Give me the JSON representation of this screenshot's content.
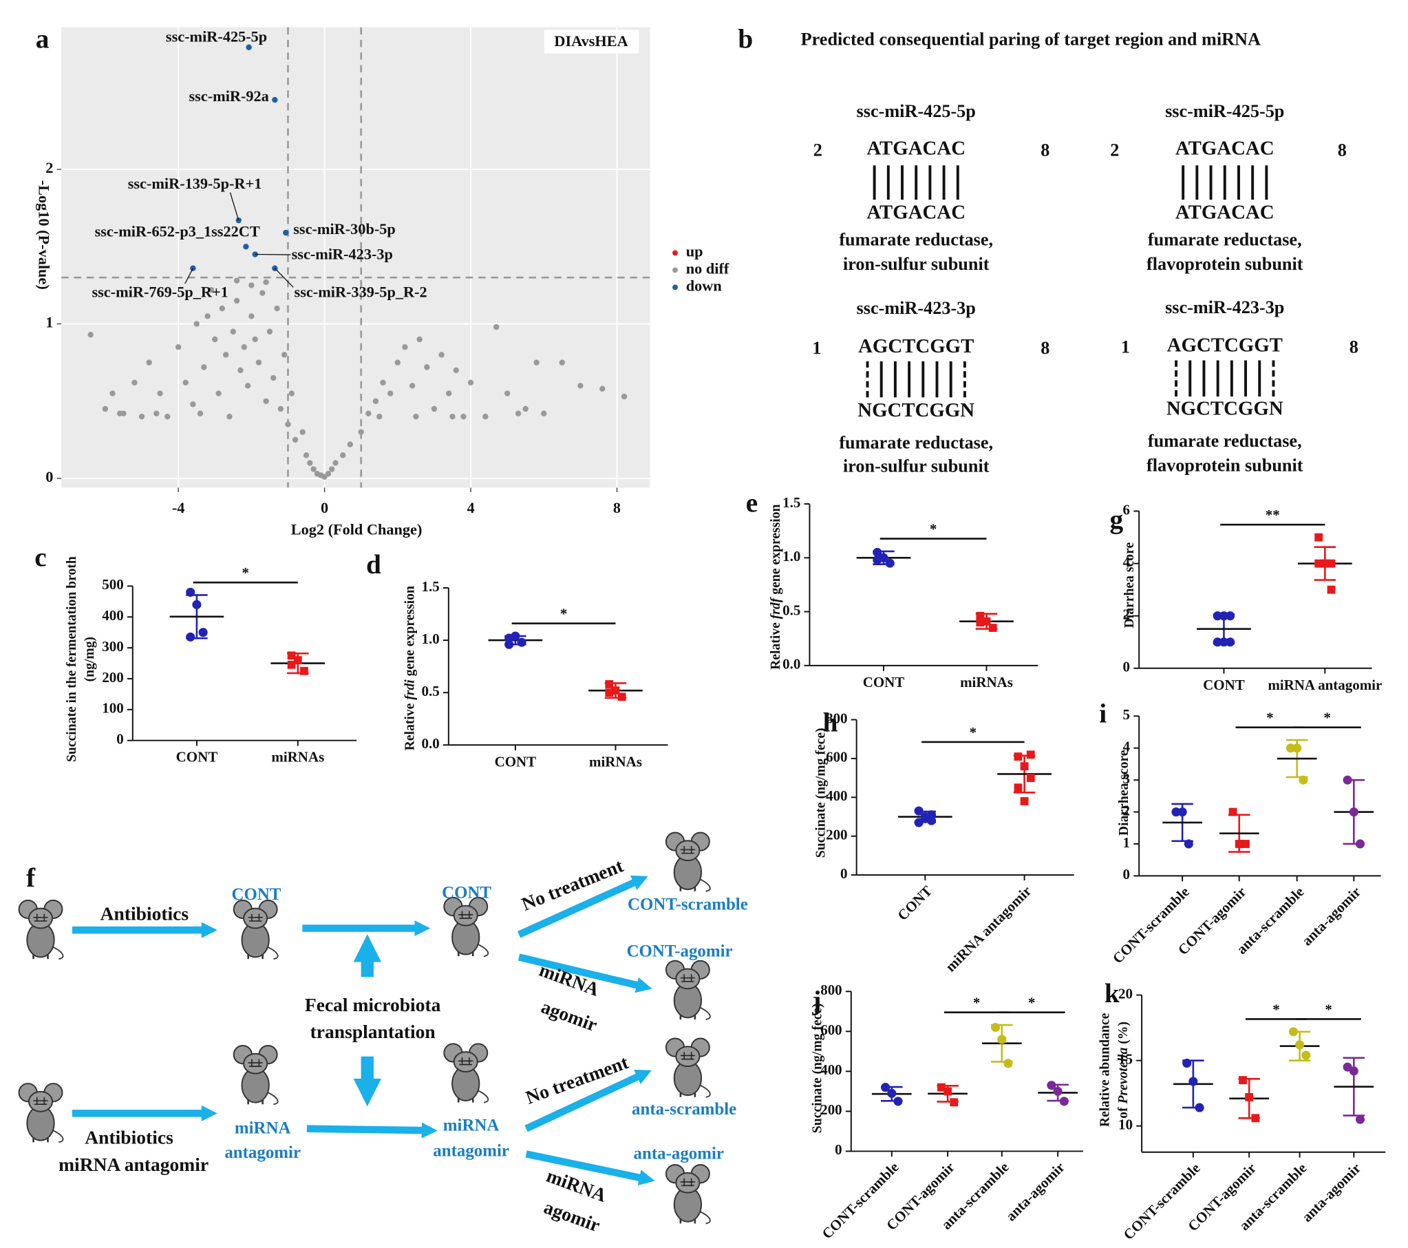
{
  "chart_data": [
    {
      "label": "a",
      "type": "scatter",
      "annotation": "DIAvsHEA",
      "xlabel": "Log2 (Fold Change)",
      "ylabel": "-Log10 (P-value)",
      "xlim": [
        -7.2,
        8.9
      ],
      "ylim": [
        -0.06,
        2.92
      ],
      "xticks": [
        -4,
        0,
        4,
        8
      ],
      "yticks": [
        0,
        1,
        2
      ],
      "grid": true,
      "legend": "right",
      "thresholds": {
        "x": [
          -1,
          1
        ],
        "y": 1.3
      },
      "series": [
        {
          "name": "up",
          "color": "#e31a1c",
          "x": [],
          "y": []
        },
        {
          "name": "no diff",
          "color": "#999999",
          "x": [
            -6.4,
            -6,
            -5.8,
            -5.5,
            -5.2,
            -5,
            -4.8,
            -4.5,
            -4.3,
            -4,
            -3.8,
            -3.6,
            -3.5,
            -3.3,
            -3.2,
            -3,
            -2.9,
            -2.8,
            -2.7,
            -2.6,
            -2.5,
            -2.4,
            -2.3,
            -2.2,
            -2.1,
            -2,
            -1.9,
            -1.8,
            -1.7,
            -1.6,
            -1.5,
            -1.4,
            -1.3,
            -1.2,
            -1.1,
            -1,
            -0.9,
            -0.8,
            -0.6,
            -0.5,
            -0.4,
            -0.3,
            -0.2,
            -0.1,
            0,
            0.1,
            0.2,
            0.3,
            0.5,
            0.7,
            1,
            1.2,
            1.4,
            1.6,
            1.8,
            2,
            2.2,
            2.4,
            2.6,
            2.8,
            3,
            3.2,
            3.4,
            3.6,
            3.8,
            4,
            4.4,
            4.7,
            5,
            5.3,
            5.5,
            5.8,
            6,
            6.5,
            7,
            7.6,
            8.2,
            -3.1,
            -2.4,
            -2,
            -1.6,
            -5.6,
            -4.6,
            -3.4,
            1.5,
            2.5,
            3.5
          ],
          "y": [
            0.93,
            0.45,
            0.55,
            0.42,
            0.62,
            0.4,
            0.75,
            0.55,
            0.4,
            0.85,
            0.62,
            0.48,
            1.0,
            0.72,
            1.05,
            0.9,
            0.55,
            1.1,
            0.8,
            0.4,
            0.95,
            1.15,
            0.7,
            0.85,
            0.6,
            1.05,
            0.9,
            0.75,
            1.2,
            0.5,
            0.95,
            0.65,
            1.1,
            0.45,
            0.8,
            0.35,
            0.55,
            0.25,
            0.3,
            0.15,
            0.1,
            0.06,
            0.03,
            0.02,
            0.01,
            0.03,
            0.06,
            0.1,
            0.15,
            0.22,
            0.3,
            0.42,
            0.5,
            0.62,
            0.55,
            0.75,
            0.85,
            0.6,
            0.9,
            0.72,
            0.45,
            0.8,
            0.55,
            0.7,
            0.4,
            0.62,
            0.4,
            0.98,
            0.55,
            0.42,
            0.45,
            0.75,
            0.42,
            0.75,
            0.6,
            0.58,
            0.53,
            1.22,
            1.28,
            1.25,
            1.27,
            0.42,
            0.42,
            0.42,
            0.4,
            0.4,
            0.4
          ]
        },
        {
          "name": "down",
          "color": "#1f5fa8",
          "x": [
            -2.07,
            -1.36,
            -2.35,
            -1.06,
            -2.15,
            -1.9,
            -3.6,
            -1.36
          ],
          "y": [
            2.79,
            2.45,
            1.67,
            1.59,
            1.5,
            1.45,
            1.36,
            1.36
          ],
          "labels": [
            "ssc-miR-425-5p",
            "ssc-miR-92a",
            "ssc-miR-139-5p-R+1",
            "ssc-miR-30b-5p",
            "ssc-miR-652-p3_1ss22CT",
            "ssc-miR-423-3p",
            "ssc-miR-769-5p_R+1",
            "ssc-miR-339-5p_R-2"
          ]
        }
      ]
    },
    {
      "label": "c",
      "type": "dot",
      "ylabel": [
        [
          {
            "text": "Succinate in the fermentation broth"
          }
        ],
        [
          {
            "text": "(ng/mg)"
          }
        ]
      ],
      "categories": [
        "CONT",
        "miRNAs"
      ],
      "ylim": [
        0,
        500
      ],
      "yticks": [
        0,
        100,
        200,
        300,
        400,
        500
      ],
      "points": [
        [
          480,
          440,
          350,
          335
        ],
        [
          275,
          260,
          225,
          245
        ]
      ],
      "mean": [
        401,
        250
      ],
      "sd": [
        70,
        32
      ],
      "colors": [
        "#2222b5",
        "#e8191b"
      ],
      "markers": [
        "circle",
        "square"
      ],
      "significance": [
        {
          "pair": [
            0,
            1
          ],
          "label": "*"
        }
      ]
    },
    {
      "label": "d",
      "type": "dot",
      "ylabel": [
        [
          {
            "text": "Relative "
          },
          {
            "text": "frdi",
            "italic": true
          },
          {
            "text": " gene expression"
          }
        ]
      ],
      "categories": [
        "CONT",
        "miRNAs"
      ],
      "ylim": [
        0,
        1.5
      ],
      "yticks": [
        {
          "value": 0,
          "label": "0.0"
        },
        0.5,
        {
          "value": 1,
          "label": "1.0"
        },
        1.5
      ],
      "points": [
        [
          1.02,
          1.04,
          0.98,
          0.96
        ],
        [
          0.58,
          0.52,
          0.46,
          0.5
        ]
      ],
      "mean": [
        1.0,
        0.52
      ],
      "sd": [
        0.04,
        0.07
      ],
      "colors": [
        "#2222b5",
        "#e8191b"
      ],
      "markers": [
        "circle",
        "square"
      ],
      "significance": [
        {
          "pair": [
            0,
            1
          ],
          "label": "*"
        }
      ]
    },
    {
      "label": "e",
      "type": "dot",
      "ylabel": [
        [
          {
            "text": "Relative "
          },
          {
            "text": "frdf",
            "italic": true
          },
          {
            "text": " gene expression"
          }
        ]
      ],
      "categories": [
        "CONT",
        "miRNAs"
      ],
      "ylim": [
        0,
        1.5
      ],
      "yticks": [
        {
          "value": 0,
          "label": "0.0"
        },
        0.5,
        {
          "value": 1,
          "label": "1.0"
        },
        1.5
      ],
      "points": [
        [
          1.05,
          1.0,
          0.95,
          0.98
        ],
        [
          0.46,
          0.41,
          0.35,
          0.4
        ]
      ],
      "mean": [
        1.0,
        0.41
      ],
      "sd": [
        0.06,
        0.07
      ],
      "colors": [
        "#2222b5",
        "#e8191b"
      ],
      "markers": [
        "circle",
        "square"
      ],
      "significance": [
        {
          "pair": [
            0,
            1
          ],
          "label": "*"
        }
      ]
    },
    {
      "label": "g",
      "type": "dot",
      "ylabel": [
        [
          {
            "text": "Diarrhea score"
          }
        ]
      ],
      "categories": [
        "CONT",
        "miRNA antagomir"
      ],
      "ylim": [
        0,
        6
      ],
      "yticks": [
        0,
        2,
        4,
        6
      ],
      "points": [
        [
          2,
          2,
          1,
          1,
          1,
          2
        ],
        [
          5,
          4,
          4,
          4,
          4,
          3
        ]
      ],
      "mean": [
        1.5,
        4.0
      ],
      "sd": [
        0.55,
        0.63
      ],
      "colors": [
        "#2222b5",
        "#e8191b"
      ],
      "markers": [
        "circle",
        "square"
      ],
      "significance": [
        {
          "pair": [
            0,
            1
          ],
          "label": "**"
        }
      ]
    },
    {
      "label": "h",
      "type": "dot",
      "ylabel": [
        [
          {
            "text": "Succinate (ng/mg fece)"
          }
        ]
      ],
      "categories": [
        "CONT",
        "miRNA antagomir"
      ],
      "ylim": [
        0,
        800
      ],
      "yticks": [
        0,
        200,
        400,
        600,
        800
      ],
      "points": [
        [
          330,
          300,
          280,
          270,
          290,
          310
        ],
        [
          610,
          560,
          500,
          450,
          380,
          620
        ]
      ],
      "mean": [
        300,
        520
      ],
      "sd": [
        27,
        95
      ],
      "colors": [
        "#2222b5",
        "#e8191b"
      ],
      "markers": [
        "circle",
        "square"
      ],
      "significance": [
        {
          "pair": [
            0,
            1
          ],
          "label": "*"
        }
      ]
    },
    {
      "label": "i",
      "type": "dot",
      "ylabel": [
        [
          {
            "text": "Diarrhea score"
          }
        ]
      ],
      "categories": [
        "CONT-scramble",
        "CONT-agomir",
        "anta-scramble",
        "anta-agomir"
      ],
      "ylim": [
        0,
        5
      ],
      "yticks": [
        0,
        1,
        2,
        3,
        4,
        5
      ],
      "points": [
        [
          2,
          2,
          1
        ],
        [
          2,
          1,
          1
        ],
        [
          4,
          4,
          3
        ],
        [
          3,
          2,
          1
        ]
      ],
      "mean": [
        1.67,
        1.33,
        3.67,
        2
      ],
      "sd": [
        0.58,
        0.58,
        0.58,
        1
      ],
      "colors": [
        "#2222b5",
        "#e8191b",
        "#c4bd18",
        "#7a2a96"
      ],
      "markers": [
        "circle",
        "square",
        "circle",
        "circle"
      ],
      "significance": [
        {
          "pair": [
            1,
            2
          ],
          "label": "*"
        },
        {
          "pair": [
            2,
            3
          ],
          "label": "*"
        }
      ]
    },
    {
      "label": "j",
      "type": "dot",
      "ylabel": [
        [
          {
            "text": "Succinate (ng/mg fece)"
          }
        ]
      ],
      "categories": [
        "CONT-scramble",
        "CONT-agomir",
        "anta-scramble",
        "anta-agomir"
      ],
      "ylim": [
        0,
        800
      ],
      "yticks": [
        0,
        200,
        400,
        600,
        800
      ],
      "points": [
        [
          320,
          290,
          250
        ],
        [
          320,
          300,
          245
        ],
        [
          620,
          560,
          440
        ],
        [
          330,
          300,
          250
        ]
      ],
      "mean": [
        287,
        288,
        540,
        293
      ],
      "sd": [
        35,
        40,
        92,
        40
      ],
      "colors": [
        "#2222b5",
        "#e8191b",
        "#c4bd18",
        "#7a2a96"
      ],
      "markers": [
        "circle",
        "square",
        "circle",
        "circle"
      ],
      "significance": [
        {
          "pair": [
            1,
            2
          ],
          "label": "*"
        },
        {
          "pair": [
            2,
            3
          ],
          "label": "*"
        }
      ]
    },
    {
      "label": "k",
      "type": "dot",
      "ylabel": [
        [
          {
            "text": "Relative abundance"
          }
        ],
        [
          {
            "text": "of "
          },
          {
            "text": "Prevotella",
            "italic": true
          },
          {
            "text": " (%)"
          }
        ]
      ],
      "categories": [
        "CONT-scramble",
        "CONT-agomir",
        "anta-scramble",
        "anta-agomir"
      ],
      "ylim": [
        8,
        20
      ],
      "yticks": [
        10,
        15,
        20
      ],
      "points": [
        [
          14.8,
          13.4,
          11.4
        ],
        [
          13.5,
          12.2,
          10.6
        ],
        [
          17.2,
          16.2,
          15.4
        ],
        [
          14.5,
          14.2,
          10.5
        ]
      ],
      "mean": [
        13.2,
        12.1,
        16.1,
        13
      ],
      "sd": [
        1.8,
        1.5,
        1.1,
        2.2
      ],
      "colors": [
        "#2222b5",
        "#e8191b",
        "#c4bd18",
        "#7a2a96"
      ],
      "markers": [
        "circle",
        "square",
        "circle",
        "circle"
      ],
      "significance": [
        {
          "pair": [
            1,
            2
          ],
          "label": "*"
        },
        {
          "pair": [
            2,
            3
          ],
          "label": "*"
        }
      ]
    }
  ],
  "pairing": {
    "label": "b",
    "title": "Predicted consequential paring of target region and miRNA",
    "blocks": [
      {
        "mirna": "ssc-miR-425-5p",
        "start": 2,
        "end": 8,
        "mirna_seq": "ATGACAC",
        "target_seq": "ATGACAC",
        "target": [
          "fumarate reductase,",
          "iron-sulfur subunit"
        ]
      },
      {
        "mirna": "ssc-miR-425-5p",
        "start": 2,
        "end": 8,
        "mirna_seq": "ATGACAC",
        "target_seq": "ATGACAC",
        "target": [
          "fumarate reductase,",
          "flavoprotein subunit"
        ]
      },
      {
        "mirna": "ssc-miR-423-3p",
        "start": 1,
        "end": 8,
        "mirna_seq": "AGCTCGGT",
        "target_seq": "NGCTCGGN",
        "target": [
          "fumarate reductase,",
          "iron-sulfur subunit"
        ]
      },
      {
        "mirna": "ssc-miR-423-3p",
        "start": 1,
        "end": 8,
        "mirna_seq": "AGCTCGGT",
        "target_seq": "NGCTCGGN",
        "target": [
          "fumarate reductase,",
          "flavoprotein subunit"
        ]
      }
    ]
  },
  "schematic": {
    "label": "f",
    "items": [
      "Antibiotics",
      "CONT",
      "CONT",
      "No treatment",
      "CONT-scramble",
      "CONT-agomir",
      "miRNA",
      "agomir",
      "Fecal microbiota",
      "transplantation",
      "Antibiotics",
      "miRNA antagomir",
      "miRNA",
      "antagomir",
      "miRNA",
      "antagomir",
      "No treatment",
      "anta-scramble",
      "anta-agomir",
      "miRNA",
      "agomir"
    ]
  }
}
